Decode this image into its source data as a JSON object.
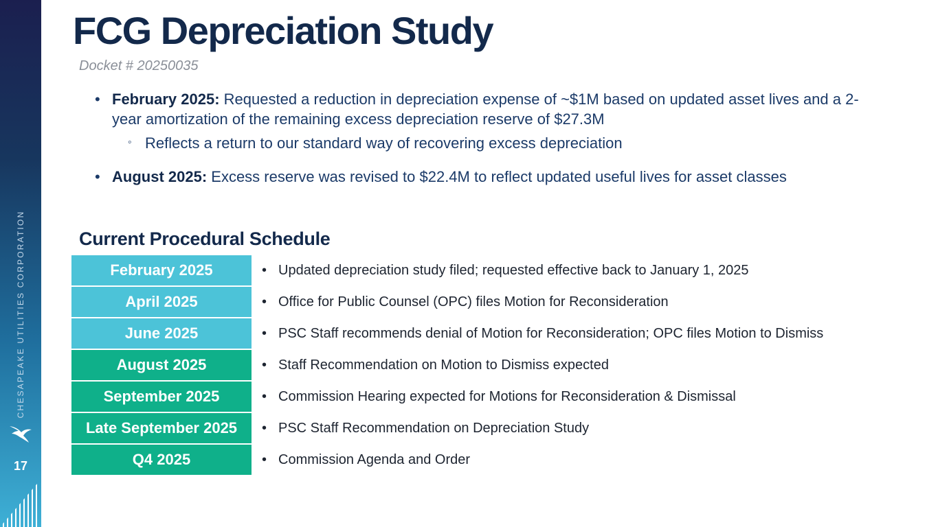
{
  "slide": {
    "title": "FCG Depreciation Study",
    "docket": "Docket # 20250035",
    "page_number": "17",
    "corporation": "CHESAPEAKE UTILITIES CORPORATION"
  },
  "bullets": [
    {
      "lead": "February 2025:",
      "text": " Requested a reduction in depreciation expense of ~$1M based on updated asset lives and a 2-year amortization of the remaining excess depreciation reserve of $27.3M",
      "sub": "Reflects a return to our standard way of recovering excess depreciation"
    },
    {
      "lead": "August 2025:",
      "text": " Excess reserve was revised to $22.4M to reflect updated useful lives for asset classes"
    }
  ],
  "schedule": {
    "title": "Current Procedural Schedule",
    "rows": [
      {
        "date": "February 2025",
        "event": "Updated depreciation study filed; requested effective back to January 1, 2025"
      },
      {
        "date": "April 2025",
        "event": "Office for Public Counsel (OPC) files Motion for Reconsideration"
      },
      {
        "date": "June 2025",
        "event": "PSC Staff recommends denial of Motion for Reconsideration; OPC files Motion to Dismiss"
      },
      {
        "date": "August 2025",
        "event": "Staff Recommendation on Motion to Dismiss expected"
      },
      {
        "date": "September 2025",
        "event": "Commission Hearing expected for Motions for Reconsideration & Dismissal"
      },
      {
        "date": "Late September 2025",
        "event": "PSC Staff Recommendation on Depreciation Study"
      },
      {
        "date": "Q4 2025",
        "event": "Commission Agenda and Order"
      }
    ]
  },
  "colors": {
    "navy": "#13294b",
    "completed_date": "#4cc3d8",
    "upcoming_date": "#0fb08a"
  },
  "icons": {
    "logo": "chesapeake-bird-logo-icon"
  }
}
